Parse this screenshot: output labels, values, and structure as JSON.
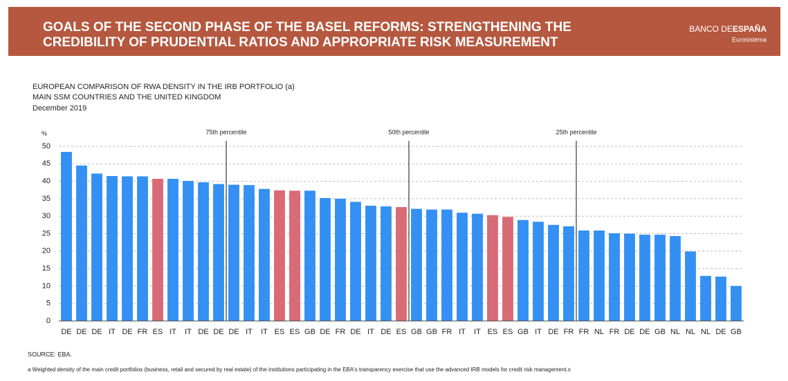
{
  "header": {
    "title_lines": [
      "GOALS OF THE SECOND PHASE OF THE BASEL REFORMS: STRENGTHENING THE",
      "CREDIBILITY OF PRUDENTIAL RATIOS AND APPROPRIATE RISK MEASUREMENT"
    ],
    "logo_light": "BANCO DE",
    "logo_bold": "ESPAÑA",
    "logo_sub": "Eurosistema"
  },
  "chart_data": {
    "type": "bar",
    "title_lines": [
      "EUROPEAN COMPARISON OF RWA DENSITY IN THE IRB PORTFOLIO (a)",
      "MAIN SSM COUNTRIES AND THE UNITED KINGDOM",
      "December 2019"
    ],
    "y_label": "%",
    "annotations": [
      "75th percentile",
      "50th percentile",
      "25th percentile"
    ],
    "categories": [
      "DE",
      "DE",
      "DE",
      "IT",
      "DE",
      "FR",
      "ES",
      "IT",
      "IT",
      "DE",
      "DE",
      "DE",
      "IT",
      "IT",
      "ES",
      "ES",
      "GB",
      "DE",
      "FR",
      "DE",
      "IT",
      "DE",
      "ES",
      "GB",
      "GB",
      "FR",
      "IT",
      "IT",
      "ES",
      "ES",
      "GB",
      "IT",
      "DE",
      "FR",
      "FR",
      "NL",
      "FR",
      "DE",
      "DE",
      "GB",
      "NL",
      "NL",
      "NL",
      "DE",
      "GB"
    ],
    "values": [
      48.4,
      44.5,
      42.2,
      41.5,
      41.4,
      41.4,
      40.7,
      40.7,
      40.1,
      39.7,
      39.2,
      39.0,
      38.9,
      37.8,
      37.4,
      37.3,
      37.3,
      35.2,
      35.0,
      34.1,
      33.0,
      32.8,
      32.6,
      32.1,
      31.9,
      31.9,
      31.0,
      30.7,
      30.3,
      29.8,
      28.9,
      28.4,
      27.5,
      27.1,
      25.9,
      25.9,
      25.1,
      25.0,
      24.7,
      24.7,
      24.3,
      19.9,
      12.9,
      12.7,
      10.0
    ],
    "colors": [
      "#3490f2",
      "#3490f2",
      "#3490f2",
      "#3490f2",
      "#3490f2",
      "#3490f2",
      "#d96b76",
      "#3490f2",
      "#3490f2",
      "#3490f2",
      "#3490f2",
      "#3490f2",
      "#3490f2",
      "#3490f2",
      "#d96b76",
      "#d96b76",
      "#3490f2",
      "#3490f2",
      "#3490f2",
      "#3490f2",
      "#3490f2",
      "#3490f2",
      "#d96b76",
      "#3490f2",
      "#3490f2",
      "#3490f2",
      "#3490f2",
      "#3490f2",
      "#d96b76",
      "#d96b76",
      "#3490f2",
      "#3490f2",
      "#3490f2",
      "#3490f2",
      "#3490f2",
      "#3490f2",
      "#3490f2",
      "#3490f2",
      "#3490f2",
      "#3490f2",
      "#3490f2",
      "#3490f2",
      "#3490f2",
      "#3490f2",
      "#3490f2"
    ],
    "ylim": [
      0,
      50
    ],
    "yticks": [
      0,
      5,
      10,
      15,
      20,
      25,
      30,
      35,
      40,
      45,
      50
    ],
    "grid": true,
    "source": "SOURCE: EBA.",
    "footnote": "a  Weighted density of the main credit portfolios (business, retail and secured by real estate) of the institutions participating in the EBA's transparency exercise that use the advanced IRB models for credit risk management.s"
  }
}
